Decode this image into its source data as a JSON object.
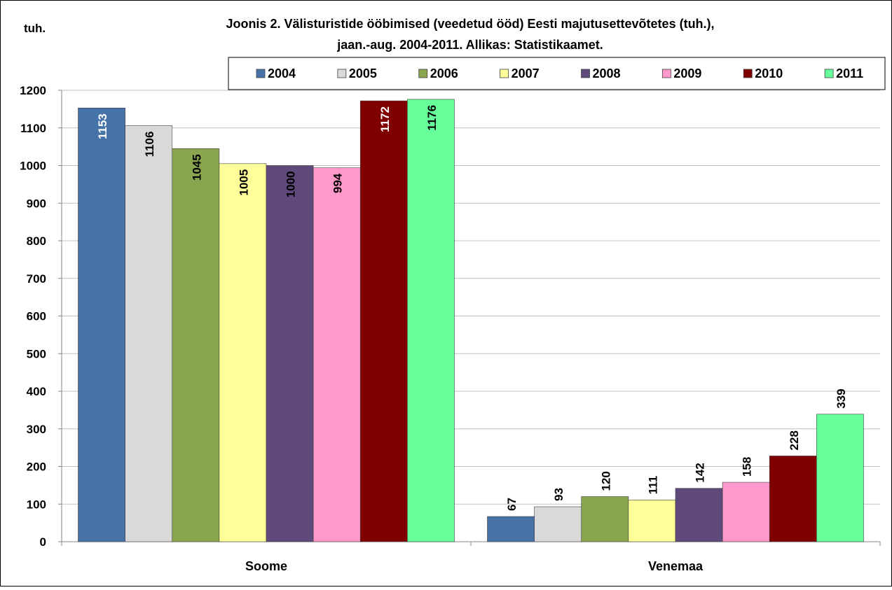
{
  "chart_data": {
    "type": "bar",
    "title_line1": "Joonis 2. Välisturistide  ööbimised (veedetud ööd) Eesti majutusettevõtetes (tuh.),",
    "title_line2": "jaan.-aug.  2004-2011. Allikas: Statistikaamet.",
    "ylabel": "tuh.",
    "xlabel": "",
    "categories": [
      "Soome",
      "Venemaa"
    ],
    "ylim": [
      0,
      1200
    ],
    "yticks": [
      0,
      100,
      200,
      300,
      400,
      500,
      600,
      700,
      800,
      900,
      1000,
      1100,
      1200
    ],
    "grid": true,
    "legend_position": "top-right",
    "series": [
      {
        "name": "2004",
        "color": "#4572A7",
        "label_color": "#ffffff",
        "values": [
          1153,
          67
        ]
      },
      {
        "name": "2005",
        "color": "#D9D9D9",
        "label_color": "#000000",
        "values": [
          1106,
          93
        ]
      },
      {
        "name": "2006",
        "color": "#89A54E",
        "label_color": "#000000",
        "values": [
          1045,
          120
        ]
      },
      {
        "name": "2007",
        "color": "#FFFF99",
        "label_color": "#000000",
        "values": [
          1005,
          111
        ]
      },
      {
        "name": "2008",
        "color": "#604A7B",
        "label_color": "#000000",
        "values": [
          1000,
          142
        ]
      },
      {
        "name": "2009",
        "color": "#FF99CC",
        "label_color": "#000000",
        "values": [
          994,
          158
        ]
      },
      {
        "name": "2010",
        "color": "#800000",
        "label_color": "#ffffff",
        "values": [
          1172,
          228
        ]
      },
      {
        "name": "2011",
        "color": "#66FF99",
        "label_color": "#000000",
        "values": [
          1176,
          339
        ]
      }
    ]
  }
}
